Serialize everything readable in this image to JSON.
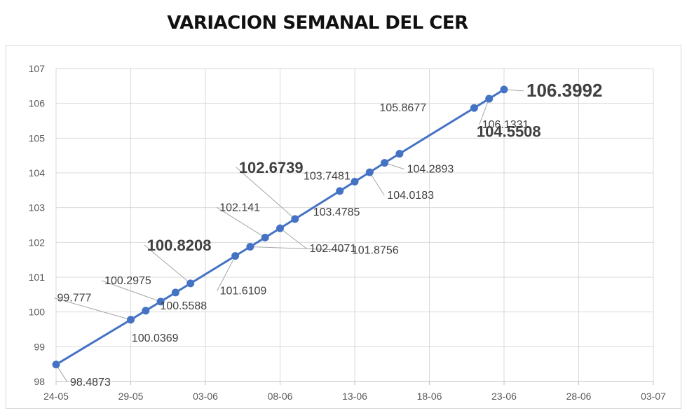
{
  "title": "VARIACION SEMANAL DEL CER",
  "chart_data": {
    "type": "line",
    "title": "VARIACION SEMANAL DEL CER",
    "xlabel": "",
    "ylabel": "",
    "x_tick_labels": [
      "24-05",
      "29-05",
      "03-06",
      "08-06",
      "13-06",
      "18-06",
      "23-06",
      "28-06",
      "03-07"
    ],
    "y_tick_labels": [
      "98",
      "99",
      "100",
      "101",
      "102",
      "103",
      "104",
      "105",
      "106",
      "107"
    ],
    "xlim_days": [
      0,
      40
    ],
    "ylim": [
      98,
      107
    ],
    "grid": {
      "horizontal": true,
      "vertical": true
    },
    "legend": "none",
    "line_color": "#4472C4",
    "point_color": "#4472C4",
    "series": [
      {
        "x": [
          "24-05",
          "29-05",
          "30-05",
          "31-05",
          "01-06",
          "02-06",
          "05-06",
          "06-06",
          "07-06",
          "08-06",
          "09-06",
          "12-06",
          "13-06",
          "14-06",
          "15-06",
          "16-06",
          "21-06",
          "22-06",
          "23-06"
        ],
        "y": [
          98.4873,
          99.777,
          100.0369,
          100.2975,
          100.5588,
          100.8208,
          101.6109,
          101.8756,
          102.141,
          102.4071,
          102.6739,
          103.4785,
          103.7481,
          104.0183,
          104.2893,
          104.5508,
          105.8677,
          106.1331,
          106.3992
        ],
        "day_offsets": [
          0,
          5,
          6,
          7,
          8,
          9,
          12,
          13,
          14,
          15,
          16,
          19,
          20,
          21,
          22,
          23,
          28,
          29,
          30
        ]
      }
    ],
    "data_labels": [
      "98.4873",
      "99.777",
      "100.0369",
      "100.2975",
      "100.5588",
      "100.8208",
      "101.6109",
      "101.8756",
      "102.141",
      "102.4071",
      "102.6739",
      "103.4785",
      "103.7481",
      "104.0183",
      "104.2893",
      "104.5508",
      "105.8677",
      "106.1331",
      "106.3992"
    ],
    "highlighted_labels": [
      "100.8208",
      "102.6739",
      "104.5508",
      "106.3992"
    ]
  }
}
